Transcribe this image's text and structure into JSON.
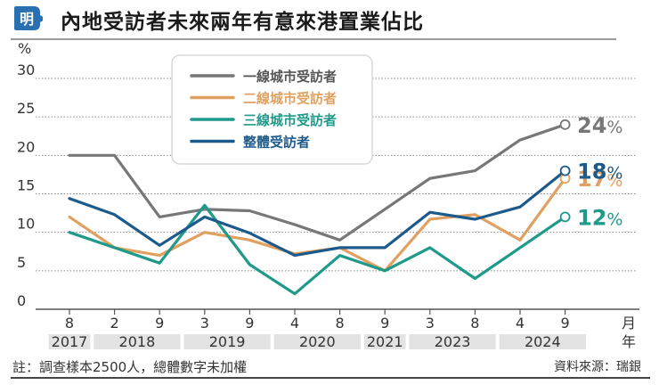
{
  "header": {
    "logo_glyph": "明",
    "logo_color": "#2a6fb0",
    "title": "內地受訪者未來兩年有意來港置業佔比"
  },
  "chart_data": {
    "type": "line",
    "title": "內地受訪者未來兩年有意來港置業佔比",
    "ylabel": "%",
    "xlabel": "月 年",
    "ylim": [
      0,
      30
    ],
    "yticks": [
      0,
      5,
      10,
      15,
      20,
      25,
      30
    ],
    "grid": true,
    "legend_position": "top-center",
    "x_month_labels": [
      "8",
      "2",
      "9",
      "3",
      "9",
      "4",
      "8",
      "9",
      "3",
      "8",
      "4",
      "9"
    ],
    "x_year_groups": [
      {
        "label": "2017",
        "span": 1
      },
      {
        "label": "2018",
        "span": 2
      },
      {
        "label": "2019",
        "span": 2
      },
      {
        "label": "2020",
        "span": 2
      },
      {
        "label": "2021",
        "span": 1
      },
      {
        "label": "2023",
        "span": 2
      },
      {
        "label": "2024",
        "span": 2
      }
    ],
    "x_axis_unit_month": "月",
    "x_axis_unit_year": "年",
    "series": [
      {
        "name": "一線城市受訪者",
        "color": "#777777",
        "values": [
          20,
          20,
          12,
          13,
          12.8,
          11,
          9,
          13,
          17,
          18,
          22,
          24
        ],
        "end_label": "24",
        "end_suffix": "%"
      },
      {
        "name": "二線城市受訪者",
        "color": "#e0a060",
        "values": [
          12,
          8,
          7,
          10,
          9,
          7.2,
          8,
          5,
          11.7,
          12.3,
          9,
          17
        ],
        "end_label": "17",
        "end_suffix": "%"
      },
      {
        "name": "三線城市受訪者",
        "color": "#1f9a8a",
        "values": [
          10,
          8,
          6,
          13.5,
          5.8,
          2,
          7,
          5,
          8,
          4,
          8,
          12
        ],
        "end_label": "12",
        "end_suffix": "%"
      },
      {
        "name": "整體受訪者",
        "color": "#1d5a8c",
        "values": [
          14.4,
          12.3,
          8.3,
          12,
          9.9,
          7,
          8,
          8,
          12.6,
          11.7,
          13.3,
          18
        ],
        "end_label": "18",
        "end_suffix": "%"
      }
    ]
  },
  "footer": {
    "note": "註：調查樣本2500人，總體數字未加權",
    "source": "資料來源：瑞銀"
  }
}
